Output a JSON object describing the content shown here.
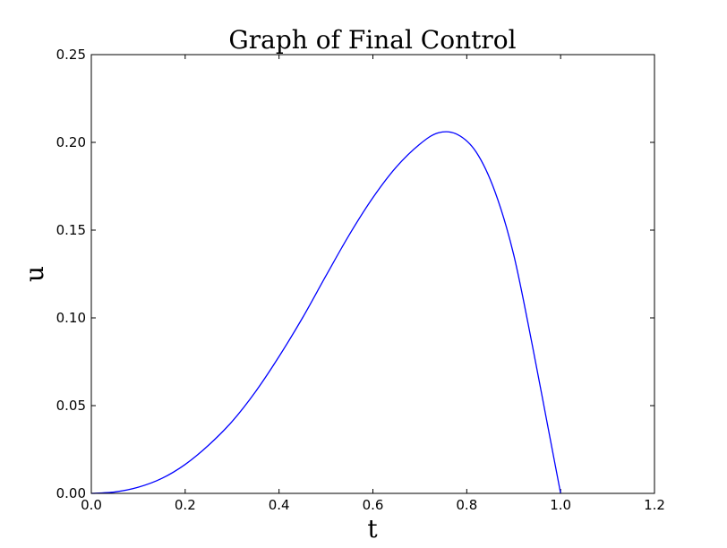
{
  "chart_data": {
    "type": "line",
    "title": "Graph of Final Control",
    "xlabel": "t",
    "ylabel": "u",
    "xlim": [
      0.0,
      1.2
    ],
    "ylim": [
      0.0,
      0.25
    ],
    "grid": false,
    "xticks": [
      "0.0",
      "0.2",
      "0.4",
      "0.6",
      "0.8",
      "1.0",
      "1.2"
    ],
    "yticks": [
      "0.00",
      "0.05",
      "0.10",
      "0.15",
      "0.20",
      "0.25"
    ],
    "series": [
      {
        "color": "#0000ff",
        "x": [
          0.0,
          0.05,
          0.1,
          0.15,
          0.2,
          0.25,
          0.3,
          0.35,
          0.4,
          0.45,
          0.5,
          0.55,
          0.6,
          0.65,
          0.7,
          0.74,
          0.78,
          0.82,
          0.86,
          0.9,
          0.94,
          0.97,
          1.0
        ],
        "y": [
          0.0,
          0.0008,
          0.0035,
          0.0085,
          0.0165,
          0.0275,
          0.041,
          0.058,
          0.078,
          0.1,
          0.124,
          0.1475,
          0.1685,
          0.186,
          0.199,
          0.2055,
          0.2045,
          0.1945,
          0.172,
          0.136,
          0.084,
          0.042,
          0.0
        ]
      }
    ]
  }
}
